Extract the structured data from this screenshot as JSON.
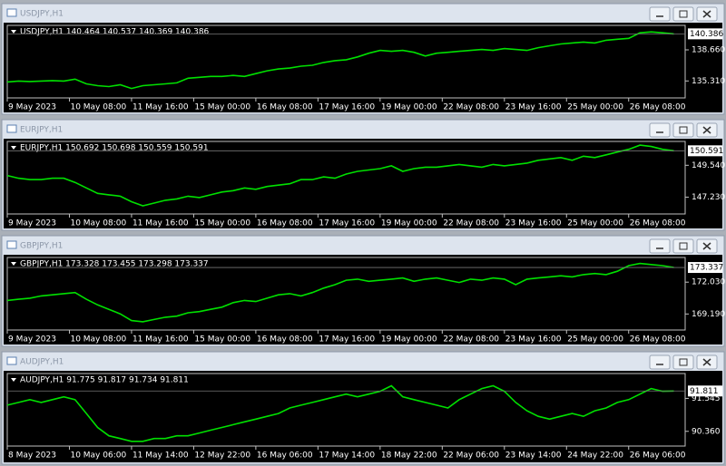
{
  "chart_data": [
    {
      "type": "line",
      "title": "USDJPY,H1",
      "info": "USDJPY,H1  140.464 140.537 140.369 140.386",
      "color": "#00e000",
      "values": [
        135.2,
        135.3,
        135.25,
        135.3,
        135.35,
        135.3,
        135.5,
        135.0,
        134.8,
        134.7,
        134.9,
        134.5,
        134.8,
        134.9,
        135.0,
        135.1,
        135.6,
        135.7,
        135.8,
        135.8,
        135.9,
        135.8,
        136.1,
        136.4,
        136.6,
        136.7,
        136.9,
        137.0,
        137.3,
        137.5,
        137.6,
        137.9,
        138.3,
        138.6,
        138.5,
        138.6,
        138.4,
        138.0,
        138.3,
        138.4,
        138.5,
        138.6,
        138.7,
        138.6,
        138.8,
        138.7,
        138.6,
        138.9,
        139.1,
        139.3,
        139.4,
        139.5,
        139.4,
        139.7,
        139.8,
        139.9,
        140.5,
        140.6,
        140.5,
        140.386
      ],
      "last_price": 140.386,
      "xlim": [
        0,
        60
      ],
      "ylim": [
        133.48,
        141.3
      ],
      "xticks": [
        {
          "value": 0,
          "label": "9 May 2023"
        },
        {
          "value": 5.5,
          "label": "10 May 08:00"
        },
        {
          "value": 11,
          "label": "11 May 16:00"
        },
        {
          "value": 16.5,
          "label": "15 May 00:00"
        },
        {
          "value": 22,
          "label": "16 May 08:00"
        },
        {
          "value": 27.5,
          "label": "17 May 16:00"
        },
        {
          "value": 33,
          "label": "19 May 00:00"
        },
        {
          "value": 38.5,
          "label": "22 May 08:00"
        },
        {
          "value": 44,
          "label": "23 May 16:00"
        },
        {
          "value": 49.5,
          "label": "25 May 00:00"
        },
        {
          "value": 55,
          "label": "26 May 08:00"
        }
      ],
      "yticks": [
        {
          "value": 138.66,
          "label": "138.660"
        },
        {
          "value": 135.31,
          "label": "135.310"
        }
      ]
    },
    {
      "type": "line",
      "title": "EURJPY,H1",
      "info": "EURJPY,H1  150.692 150.698 150.559 150.591",
      "color": "#00e000",
      "values": [
        148.8,
        148.6,
        148.5,
        148.5,
        148.6,
        148.6,
        148.3,
        147.9,
        147.5,
        147.4,
        147.3,
        146.9,
        146.6,
        146.8,
        147.0,
        147.1,
        147.3,
        147.2,
        147.4,
        147.6,
        147.7,
        147.9,
        147.8,
        148.0,
        148.1,
        148.2,
        148.5,
        148.5,
        148.7,
        148.6,
        148.9,
        149.1,
        149.2,
        149.3,
        149.5,
        149.1,
        149.3,
        149.4,
        149.4,
        149.5,
        149.6,
        149.5,
        149.4,
        149.6,
        149.5,
        149.6,
        149.7,
        149.9,
        150.0,
        150.1,
        149.9,
        150.2,
        150.1,
        150.3,
        150.5,
        150.7,
        151.0,
        150.9,
        150.7,
        150.591
      ],
      "last_price": 150.591,
      "xlim": [
        0,
        60
      ],
      "ylim": [
        146.01,
        151.27
      ],
      "xticks": [
        {
          "value": 0,
          "label": "9 May 2023"
        },
        {
          "value": 5.5,
          "label": "10 May 08:00"
        },
        {
          "value": 11,
          "label": "11 May 16:00"
        },
        {
          "value": 16.5,
          "label": "15 May 00:00"
        },
        {
          "value": 22,
          "label": "16 May 08:00"
        },
        {
          "value": 27.5,
          "label": "17 May 16:00"
        },
        {
          "value": 33,
          "label": "19 May 00:00"
        },
        {
          "value": 38.5,
          "label": "22 May 08:00"
        },
        {
          "value": 44,
          "label": "23 May 16:00"
        },
        {
          "value": 49.5,
          "label": "25 May 00:00"
        },
        {
          "value": 55,
          "label": "26 May 08:00"
        }
      ],
      "yticks": [
        {
          "value": 149.54,
          "label": "149.540"
        },
        {
          "value": 147.23,
          "label": "147.230"
        }
      ]
    },
    {
      "type": "line",
      "title": "GBPJPY,H1",
      "info": "GBPJPY,H1  173.328 173.455 173.298 173.337",
      "color": "#00e000",
      "values": [
        170.4,
        170.5,
        170.6,
        170.8,
        170.9,
        171.0,
        171.1,
        170.5,
        170.0,
        169.6,
        169.2,
        168.6,
        168.5,
        168.7,
        168.9,
        169.0,
        169.3,
        169.4,
        169.6,
        169.8,
        170.2,
        170.4,
        170.3,
        170.6,
        170.9,
        171.0,
        170.8,
        171.1,
        171.5,
        171.8,
        172.2,
        172.3,
        172.1,
        172.2,
        172.3,
        172.4,
        172.1,
        172.3,
        172.4,
        172.2,
        172.0,
        172.3,
        172.2,
        172.4,
        172.3,
        171.8,
        172.3,
        172.4,
        172.5,
        172.6,
        172.5,
        172.7,
        172.8,
        172.7,
        173.0,
        173.5,
        173.7,
        173.6,
        173.5,
        173.337
      ],
      "last_price": 173.337,
      "xlim": [
        0,
        60
      ],
      "ylim": [
        167.76,
        174.23
      ],
      "xticks": [
        {
          "value": 0,
          "label": "9 May 2023"
        },
        {
          "value": 5.5,
          "label": "10 May 08:00"
        },
        {
          "value": 11,
          "label": "11 May 16:00"
        },
        {
          "value": 16.5,
          "label": "15 May 00:00"
        },
        {
          "value": 22,
          "label": "16 May 08:00"
        },
        {
          "value": 27.5,
          "label": "17 May 16:00"
        },
        {
          "value": 33,
          "label": "19 May 00:00"
        },
        {
          "value": 38.5,
          "label": "22 May 08:00"
        },
        {
          "value": 44,
          "label": "23 May 16:00"
        },
        {
          "value": 49.5,
          "label": "25 May 00:00"
        },
        {
          "value": 55,
          "label": "26 May 08:00"
        }
      ],
      "yticks": [
        {
          "value": 172.03,
          "label": "172.030"
        },
        {
          "value": 169.19,
          "label": "169.190"
        }
      ]
    },
    {
      "type": "line",
      "title": "AUDJPY,H1",
      "info": "AUDJPY,H1  91.775 91.817 91.734 91.811",
      "color": "#00e000",
      "values": [
        91.3,
        91.4,
        91.5,
        91.4,
        91.5,
        91.6,
        91.5,
        91.0,
        90.5,
        90.2,
        90.1,
        90.0,
        90.0,
        90.1,
        90.1,
        90.2,
        90.2,
        90.3,
        90.4,
        90.5,
        90.6,
        90.7,
        90.8,
        90.9,
        91.0,
        91.2,
        91.3,
        91.4,
        91.5,
        91.6,
        91.7,
        91.6,
        91.7,
        91.8,
        92.0,
        91.6,
        91.5,
        91.4,
        91.3,
        91.2,
        91.5,
        91.7,
        91.9,
        92.0,
        91.8,
        91.4,
        91.1,
        90.9,
        90.8,
        90.9,
        91.0,
        90.9,
        91.1,
        91.2,
        91.4,
        91.5,
        91.7,
        91.9,
        91.8,
        91.811
      ],
      "last_price": 91.811,
      "xlim": [
        0,
        60
      ],
      "ylim": [
        89.83,
        92.44
      ],
      "xticks": [
        {
          "value": 0,
          "label": "8 May 2023"
        },
        {
          "value": 5.5,
          "label": "10 May 06:00"
        },
        {
          "value": 11,
          "label": "11 May 14:00"
        },
        {
          "value": 16.5,
          "label": "12 May 22:00"
        },
        {
          "value": 22,
          "label": "16 May 06:00"
        },
        {
          "value": 27.5,
          "label": "17 May 14:00"
        },
        {
          "value": 33,
          "label": "18 May 22:00"
        },
        {
          "value": 38.5,
          "label": "22 May 06:00"
        },
        {
          "value": 44,
          "label": "23 May 14:00"
        },
        {
          "value": 49.5,
          "label": "24 May 22:00"
        },
        {
          "value": 55,
          "label": "26 May 06:00"
        }
      ],
      "yticks": [
        91.545,
        {
          "value": 90.36,
          "label": "90.360"
        }
      ]
    }
  ]
}
